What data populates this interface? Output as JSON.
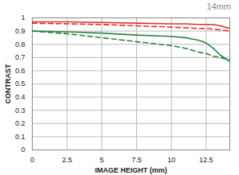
{
  "chart_data": {
    "type": "line",
    "title": "14mm",
    "x_label": "IMAGE HEIGHT (mm)",
    "y_label": "CONTRAST",
    "x": [
      0,
      2.5,
      5,
      7.5,
      10,
      11,
      12,
      12.5,
      13,
      13.5,
      14.2
    ],
    "series": [
      {
        "color": "#e0312f",
        "line_style": "solid",
        "values": [
          0.97,
          0.97,
          0.965,
          0.96,
          0.955,
          0.955,
          0.95,
          0.95,
          0.95,
          0.94,
          0.92
        ]
      },
      {
        "color": "#e0312f",
        "line_style": "dashed",
        "values": [
          0.96,
          0.955,
          0.95,
          0.94,
          0.93,
          0.925,
          0.92,
          0.92,
          0.915,
          0.91,
          0.9
        ]
      },
      {
        "color": "#2e8540",
        "line_style": "solid",
        "values": [
          0.9,
          0.895,
          0.885,
          0.87,
          0.86,
          0.85,
          0.83,
          0.81,
          0.77,
          0.72,
          0.67
        ]
      },
      {
        "color": "#2e8540",
        "line_style": "dashed",
        "values": [
          0.9,
          0.88,
          0.85,
          0.82,
          0.79,
          0.77,
          0.74,
          0.73,
          0.71,
          0.7,
          0.68
        ]
      }
    ],
    "xlim": [
      0,
      14.2
    ],
    "xticks": [
      0,
      2.5,
      5,
      7.5,
      10,
      12.5
    ],
    "ylim": [
      0,
      1
    ],
    "yticks": [
      0,
      0.1,
      0.2,
      0.3,
      0.4,
      0.5,
      0.6,
      0.7,
      0.8,
      0.9,
      1
    ],
    "grid": true
  }
}
